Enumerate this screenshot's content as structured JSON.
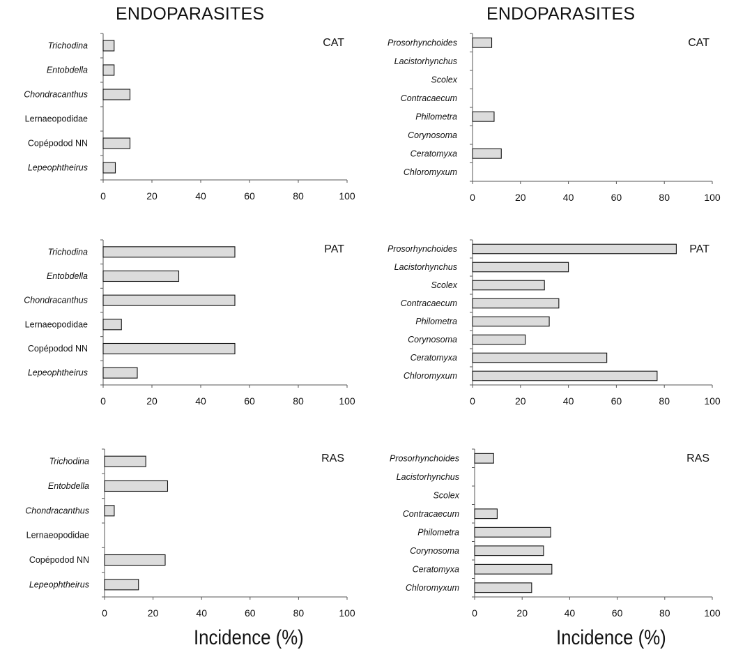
{
  "figure": {
    "left_title": "ENDOPARASITES",
    "right_title": "ENDOPARASITES",
    "left_xlabel": "Incidence (%)",
    "right_xlabel": "Incidence (%)"
  },
  "chart_data": [
    {
      "type": "bar",
      "orientation": "horizontal",
      "panel_label": "CAT",
      "categories": [
        "Trichodina",
        "Entobdella",
        "Chondracanthus",
        "Lernaeopodidae",
        "Copépodod NN",
        "Lepeophtheirus"
      ],
      "italic": [
        true,
        true,
        true,
        false,
        false,
        true
      ],
      "values": [
        4.5,
        4.5,
        11,
        0,
        11,
        5
      ],
      "xlim": [
        0,
        100
      ],
      "xticks": [
        0,
        20,
        40,
        60,
        80,
        100
      ]
    },
    {
      "type": "bar",
      "orientation": "horizontal",
      "panel_label": "CAT",
      "categories": [
        "Prosorhynchoides",
        "Lacistorhynchus",
        "Scolex",
        "Contracaecum",
        "Philometra",
        "Corynosoma",
        "Ceratomyxa",
        "Chloromyxum"
      ],
      "italic": [
        true,
        true,
        true,
        true,
        true,
        true,
        true,
        true
      ],
      "values": [
        8,
        0,
        0,
        0,
        9,
        0,
        12,
        0
      ],
      "xlim": [
        0,
        100
      ],
      "xticks": [
        0,
        20,
        40,
        60,
        80,
        100
      ]
    },
    {
      "type": "bar",
      "orientation": "horizontal",
      "panel_label": "PAT",
      "categories": [
        "Trichodina",
        "Entobdella",
        "Chondracanthus",
        "Lernaeopodidae",
        "Copépodod NN",
        "Lepeophtheirus"
      ],
      "italic": [
        true,
        true,
        true,
        false,
        false,
        true
      ],
      "values": [
        54,
        31,
        54,
        7.5,
        54,
        14
      ],
      "xlim": [
        0,
        100
      ],
      "xticks": [
        0,
        20,
        40,
        60,
        80,
        100
      ]
    },
    {
      "type": "bar",
      "orientation": "horizontal",
      "panel_label": "PAT",
      "categories": [
        "Prosorhynchoides",
        "Lacistorhynchus",
        "Scolex",
        "Contracaecum",
        "Philometra",
        "Corynosoma",
        "Ceratomyxa",
        "Chloromyxum"
      ],
      "italic": [
        true,
        true,
        true,
        true,
        true,
        true,
        true,
        true
      ],
      "values": [
        85,
        40,
        30,
        36,
        32,
        22,
        56,
        77
      ],
      "xlim": [
        0,
        100
      ],
      "xticks": [
        0,
        20,
        40,
        60,
        80,
        100
      ]
    },
    {
      "type": "bar",
      "orientation": "horizontal",
      "panel_label": "RAS",
      "categories": [
        "Trichodina",
        "Entobdella",
        "Chondracanthus",
        "Lernaeopodidae",
        "Copépodod NN",
        "Lepeophtheirus"
      ],
      "italic": [
        true,
        true,
        true,
        false,
        false,
        true
      ],
      "values": [
        17,
        26,
        4,
        0,
        25,
        14
      ],
      "xlim": [
        0,
        100
      ],
      "xticks": [
        0,
        20,
        40,
        60,
        80,
        100
      ]
    },
    {
      "type": "bar",
      "orientation": "horizontal",
      "panel_label": "RAS",
      "categories": [
        "Prosorhynchoides",
        "Lacistorhynchus",
        "Scolex",
        "Contracaecum",
        "Philometra",
        "Corynosoma",
        "Ceratomyxa",
        "Chloromyxum"
      ],
      "italic": [
        true,
        true,
        true,
        true,
        true,
        true,
        true,
        true
      ],
      "values": [
        8,
        0,
        0,
        9.5,
        32,
        29,
        32.5,
        24
      ],
      "xlim": [
        0,
        100
      ],
      "xticks": [
        0,
        20,
        40,
        60,
        80,
        100
      ]
    }
  ]
}
